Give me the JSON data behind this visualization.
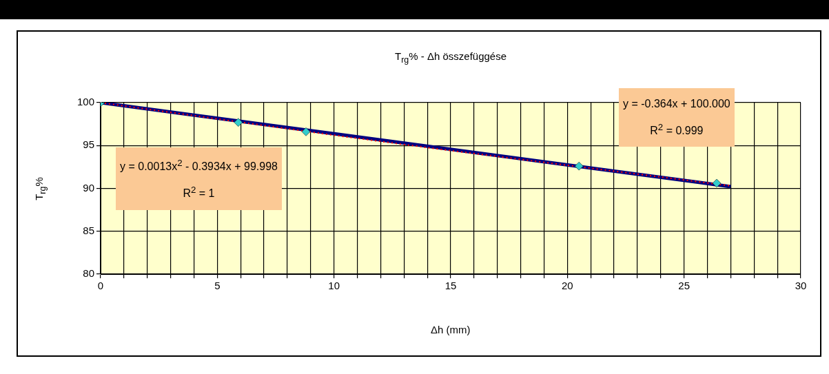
{
  "chart_data": {
    "type": "scatter",
    "title": "T$_{rg}$% - Δh összefüggése",
    "xlabel": "Δh (mm)",
    "ylabel": "T$_{rg}$%",
    "xlim": [
      0,
      30
    ],
    "ylim": [
      80,
      100
    ],
    "xticks": [
      0,
      {
        "value": 1,
        "label": null
      },
      {
        "value": 2,
        "label": null
      },
      {
        "value": 3,
        "label": null
      },
      {
        "value": 4,
        "label": null
      },
      5,
      {
        "value": 6,
        "label": null
      },
      {
        "value": 7,
        "label": null
      },
      {
        "value": 8,
        "label": null
      },
      {
        "value": 9,
        "label": null
      },
      10,
      {
        "value": 11,
        "label": null
      },
      {
        "value": 12,
        "label": null
      },
      {
        "value": 13,
        "label": null
      },
      {
        "value": 14,
        "label": null
      },
      15,
      {
        "value": 16,
        "label": null
      },
      {
        "value": 17,
        "label": null
      },
      {
        "value": 18,
        "label": null
      },
      {
        "value": 19,
        "label": null
      },
      20,
      {
        "value": 21,
        "label": null
      },
      {
        "value": 22,
        "label": null
      },
      {
        "value": 23,
        "label": null
      },
      {
        "value": 24,
        "label": null
      },
      25,
      {
        "value": 26,
        "label": null
      },
      {
        "value": 27,
        "label": null
      },
      {
        "value": 28,
        "label": null
      },
      {
        "value": 29,
        "label": null
      },
      30
    ],
    "yticks": [
      80,
      85,
      90,
      95,
      100
    ],
    "grid": true,
    "legend": false,
    "series": [
      {
        "type": "line",
        "color": "#000080",
        "x": [
          0,
          27
        ],
        "values": [
          100,
          90.2
        ],
        "marker": "none",
        "line_style": "solid"
      },
      {
        "type": "line",
        "color": "#ff0000",
        "x": [
          0,
          5,
          10,
          15,
          20,
          27
        ],
        "values": [
          100,
          98.1,
          96.2,
          94.4,
          92.7,
          90.3
        ],
        "marker": "none",
        "line_style": "dotted"
      },
      {
        "color": "#33cccc",
        "x": [
          0,
          5.9,
          8.8,
          20.5,
          26.4
        ],
        "values": [
          100,
          97.7,
          96.6,
          92.6,
          90.6
        ],
        "marker": "diamond"
      }
    ],
    "annotations": [
      "y = 0.0013x$^{2}$ - 0.3934x + 99.998",
      "R$^{2}$ = 1",
      "y = -0.364x + 100.000",
      "R$^{2}$ = 0.999"
    ]
  }
}
